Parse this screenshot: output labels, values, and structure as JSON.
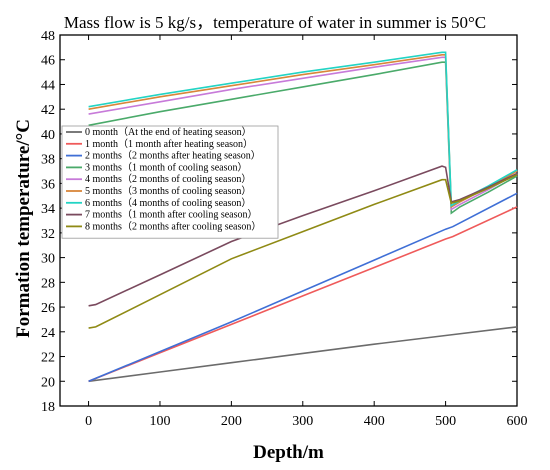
{
  "chart_data": {
    "type": "line",
    "title": "Mass flow is 5 kg/s，temperature of water in summer is 50°C",
    "xlabel": "Depth/m",
    "ylabel": "Formation temperature/°C",
    "xlim": [
      -40,
      600
    ],
    "ylim": [
      18,
      48
    ],
    "xticks": [
      0,
      100,
      200,
      300,
      400,
      500,
      600
    ],
    "yticks": [
      18,
      20,
      22,
      24,
      26,
      28,
      30,
      32,
      34,
      36,
      38,
      40,
      42,
      44,
      46,
      48
    ],
    "grid": false,
    "legend_position": "left",
    "series": [
      {
        "name": "0 month（At the end of heating season）",
        "color": "#6b6b6b",
        "x": [
          0,
          100,
          200,
          300,
          400,
          500,
          600
        ],
        "y": [
          20.0,
          20.75,
          21.5,
          22.25,
          23.0,
          23.7,
          24.4
        ]
      },
      {
        "name": "1 month（1 month after heating season）",
        "color": "#ef5a5a",
        "x": [
          0,
          100,
          200,
          300,
          400,
          500,
          510,
          600
        ],
        "y": [
          20.0,
          22.3,
          24.6,
          26.9,
          29.2,
          31.5,
          31.7,
          34.1
        ]
      },
      {
        "name": "2 months（2 months after heating season）",
        "color": "#3f6fd6",
        "x": [
          0,
          100,
          200,
          300,
          400,
          500,
          510,
          600
        ],
        "y": [
          20.0,
          22.4,
          24.8,
          27.3,
          29.8,
          32.3,
          32.5,
          35.2
        ]
      },
      {
        "name": "3 months（1 month of cooling season）",
        "color": "#4aaa6a",
        "x": [
          0,
          100,
          200,
          300,
          400,
          495,
          500,
          508,
          520,
          560,
          600
        ],
        "y": [
          40.7,
          41.8,
          42.8,
          43.8,
          44.8,
          45.8,
          45.8,
          33.6,
          34.1,
          35.3,
          36.6
        ]
      },
      {
        "name": "4 months（2 months of cooling season）",
        "color": "#c77ad9",
        "x": [
          0,
          100,
          200,
          300,
          400,
          495,
          500,
          508,
          520,
          560,
          600
        ],
        "y": [
          41.6,
          42.6,
          43.6,
          44.5,
          45.4,
          46.2,
          46.2,
          33.9,
          34.3,
          35.5,
          36.8
        ]
      },
      {
        "name": "5 months（3 months of cooling season）",
        "color": "#d8863a",
        "x": [
          0,
          100,
          200,
          300,
          400,
          495,
          500,
          508,
          520,
          560,
          600
        ],
        "y": [
          42.0,
          43.0,
          43.9,
          44.8,
          45.6,
          46.4,
          46.4,
          34.1,
          34.5,
          35.7,
          37.0
        ]
      },
      {
        "name": "6 months（4 months of cooling season）",
        "color": "#22d4c4",
        "x": [
          0,
          100,
          200,
          300,
          400,
          495,
          500,
          508,
          520,
          560,
          600
        ],
        "y": [
          42.2,
          43.2,
          44.1,
          45.0,
          45.8,
          46.6,
          46.6,
          34.2,
          34.6,
          35.8,
          37.1
        ]
      },
      {
        "name": "7 months（1 month after cooling season）",
        "color": "#7a4a5e",
        "x": [
          0,
          10,
          100,
          200,
          300,
          400,
          495,
          500,
          508,
          520,
          560,
          600
        ],
        "y": [
          26.1,
          26.2,
          28.6,
          31.3,
          33.4,
          35.4,
          37.4,
          37.3,
          34.5,
          34.7,
          35.7,
          36.8
        ]
      },
      {
        "name": "8 months（2 months after cooling season）",
        "color": "#8f8a14",
        "x": [
          0,
          10,
          100,
          200,
          300,
          400,
          495,
          500,
          508,
          520,
          560,
          600
        ],
        "y": [
          24.3,
          24.4,
          27.0,
          29.9,
          32.1,
          34.3,
          36.3,
          36.3,
          34.4,
          34.6,
          35.6,
          36.7
        ]
      }
    ]
  }
}
